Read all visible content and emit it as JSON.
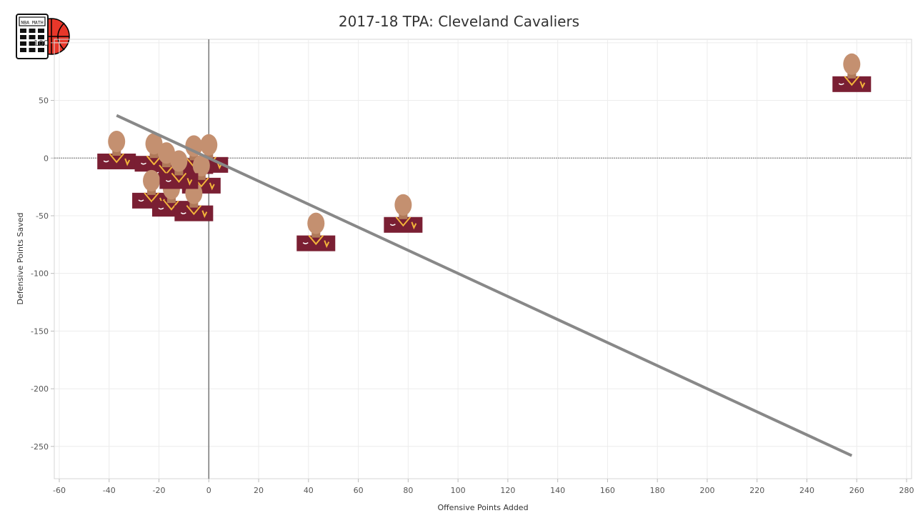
{
  "chart_data": {
    "type": "scatter",
    "title": "2017-18 TPA: Cleveland Cavaliers",
    "xlabel": "Offensive Points Added",
    "ylabel": "Defensive Points Saved",
    "xlim": [
      -62,
      282
    ],
    "ylim": [
      -278,
      103
    ],
    "xticks": [
      -60,
      -40,
      -20,
      0,
      20,
      40,
      60,
      80,
      100,
      120,
      140,
      160,
      180,
      200,
      220,
      240,
      260,
      280
    ],
    "yticks": [
      100,
      50,
      0,
      -50,
      -100,
      -150,
      -200,
      -250
    ],
    "xtick_labels": [
      "-60",
      "-40",
      "-20",
      "0",
      "20",
      "40",
      "60",
      "80",
      "100",
      "120",
      "140",
      "160",
      "180",
      "200",
      "220",
      "240",
      "260",
      "280"
    ],
    "ytick_labels": [
      "100",
      "50",
      "0",
      "-50",
      "-100",
      "-150",
      "-200",
      "-250"
    ],
    "grid": true,
    "points": [
      {
        "x": 258,
        "y": 74
      },
      {
        "x": 78,
        "y": -48
      },
      {
        "x": 43,
        "y": -64
      },
      {
        "x": -37,
        "y": 7
      },
      {
        "x": -22,
        "y": 5
      },
      {
        "x": 0,
        "y": 4
      },
      {
        "x": -17,
        "y": -3
      },
      {
        "x": -6,
        "y": 3
      },
      {
        "x": -3,
        "y": -14
      },
      {
        "x": -23,
        "y": -27
      },
      {
        "x": -15,
        "y": -34
      },
      {
        "x": -6,
        "y": -38
      },
      {
        "x": -12,
        "y": -10
      }
    ],
    "trendline": {
      "x": [
        -37,
        258
      ],
      "y": [
        37,
        -258
      ]
    },
    "reference_lines": {
      "x": 0,
      "y": 0
    }
  },
  "colors": {
    "grid": "#ececec",
    "trendline": "#888888",
    "zero_line": "#777777",
    "jersey": "#7a1f33",
    "jersey_trim": "#f2b43a",
    "logo_ball": "#e8372a"
  },
  "icons": {
    "logo": "nba-math-calculator-basketball-icon",
    "marker": "player-headshot-icon"
  },
  "logo_text": "NBA MATH"
}
